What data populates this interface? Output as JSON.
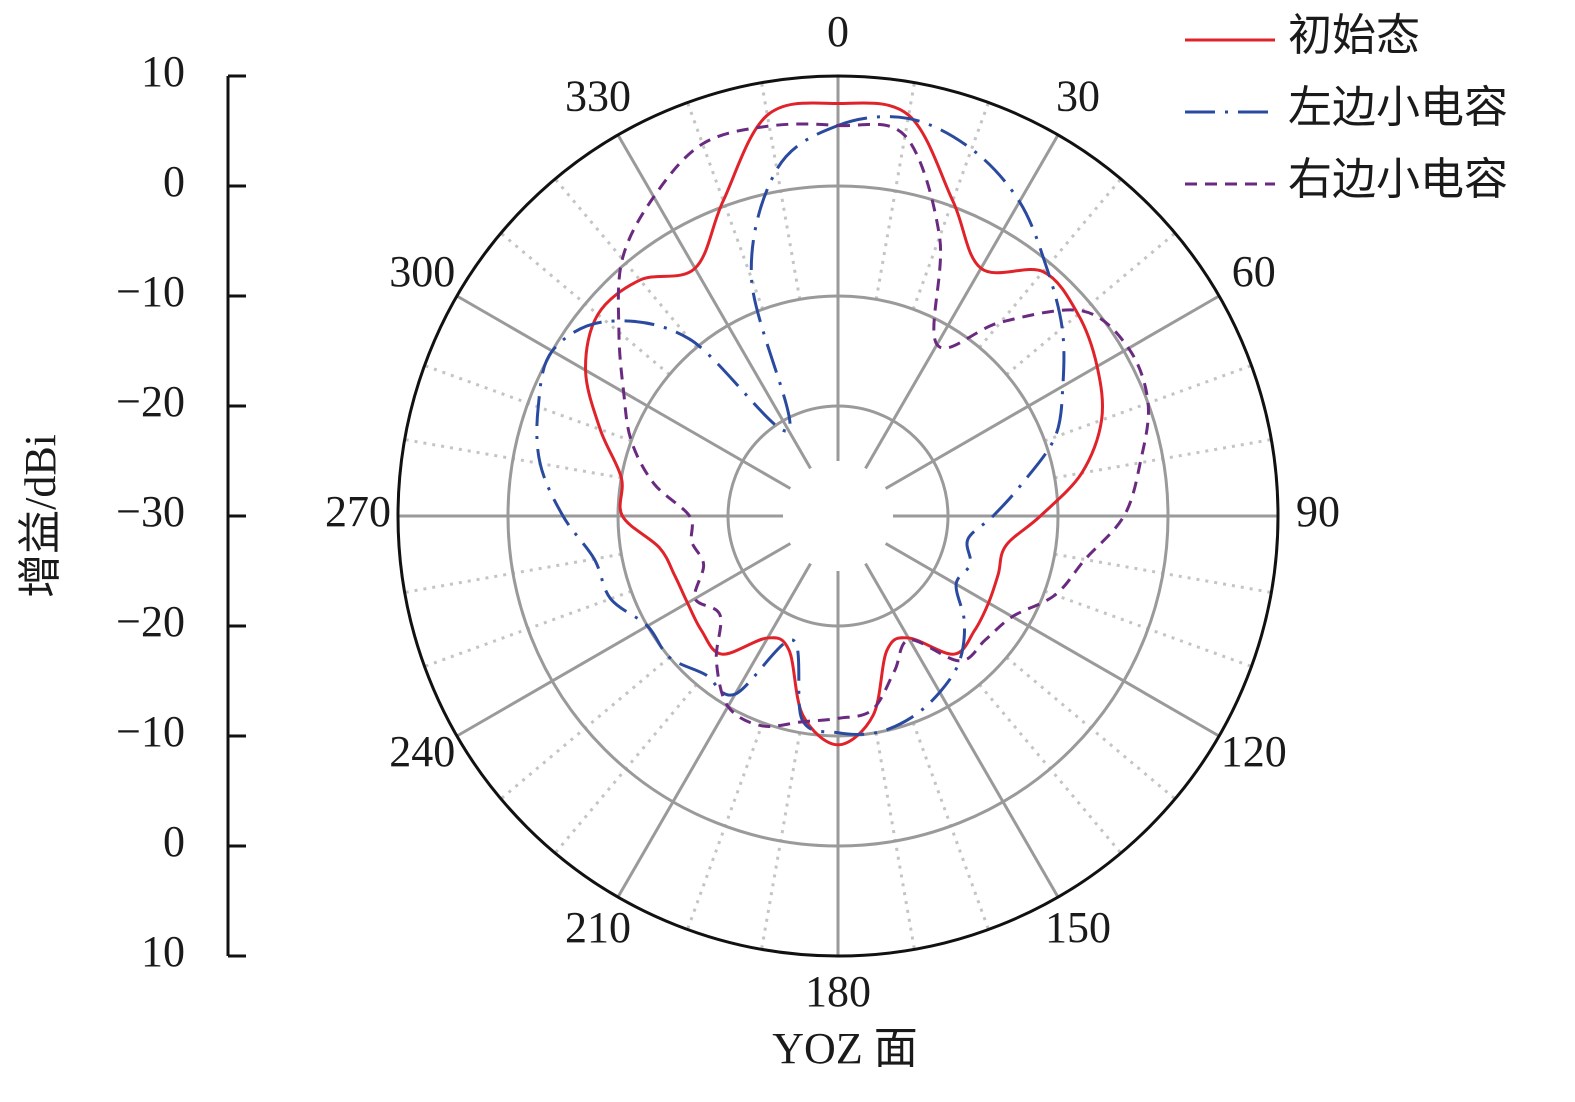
{
  "chart_data": {
    "type": "polar",
    "xlabel": "YOZ 面",
    "ylabel": "增益/dBi",
    "theta": [
      0,
      10,
      20,
      30,
      40,
      50,
      60,
      70,
      80,
      90,
      100,
      110,
      120,
      130,
      140,
      150,
      160,
      170,
      180,
      190,
      200,
      210,
      220,
      230,
      240,
      250,
      260,
      270,
      280,
      290,
      300,
      310,
      320,
      330,
      340,
      350
    ],
    "rlim": [
      -30,
      10
    ],
    "rticks": [
      {
        "value": -30,
        "label": "−30"
      },
      {
        "value": -20,
        "label": "−20"
      },
      {
        "value": -10,
        "label": "−10"
      },
      0,
      10
    ],
    "thetaticks": [
      0,
      30,
      60,
      90,
      120,
      150,
      180,
      210,
      240,
      270,
      300,
      330
    ],
    "thetaminorticks": [
      10,
      20,
      40,
      50,
      70,
      80,
      100,
      110,
      130,
      140,
      160,
      170,
      190,
      200,
      220,
      230,
      250,
      260,
      280,
      290,
      310,
      320,
      340,
      350
    ],
    "legend": "upper right",
    "series": [
      {
        "name": "初始态",
        "color": "#e0232a",
        "dash": "none",
        "values": [
          7.5,
          7,
          0.5,
          -4,
          -1,
          -1.5,
          -2.8,
          -4.5,
          -7.5,
          -11.6,
          -14.5,
          -14.5,
          -14.2,
          -13.8,
          -13.6,
          -17.2,
          -17,
          -11.6,
          -9.2,
          -11.6,
          -17,
          -17.2,
          -13.6,
          -13.8,
          -14.2,
          -14.2,
          -13.5,
          -10.4,
          -10,
          -7,
          -3.5,
          -1.5,
          -2,
          -4,
          0.5,
          7
        ]
      },
      {
        "name": "左边小电容",
        "color": "#2a4aa0",
        "dash": "30,10,3,10",
        "values": [
          5.5,
          6.7,
          5.5,
          3,
          -0.5,
          -3.4,
          -6.4,
          -9,
          -13,
          -15.9,
          -18,
          -17.2,
          -17.6,
          -15,
          -12.8,
          -11.5,
          -10.5,
          -10,
          -10.3,
          -11.2,
          -18,
          -11.3,
          -11.2,
          -10,
          -10,
          -8,
          -7.5,
          -5,
          -2.5,
          -1,
          0,
          -2.5,
          -9,
          -21,
          -7,
          2
        ]
      },
      {
        "name": "右边小电容",
        "color": "#6a2a80",
        "dash": "12,8",
        "values": [
          5.5,
          5.1,
          -3,
          -12,
          -7,
          -1,
          0.5,
          0,
          -2.1,
          -4,
          -7.2,
          -9,
          -11.7,
          -12.5,
          -12.8,
          -17,
          -15,
          -12.1,
          -11.6,
          -11,
          -9.7,
          -10,
          -12.8,
          -16,
          -15,
          -17,
          -16.5,
          -16.5,
          -13,
          -10,
          -7.5,
          -4,
          0.5,
          3.5,
          6,
          6
        ]
      }
    ]
  }
}
